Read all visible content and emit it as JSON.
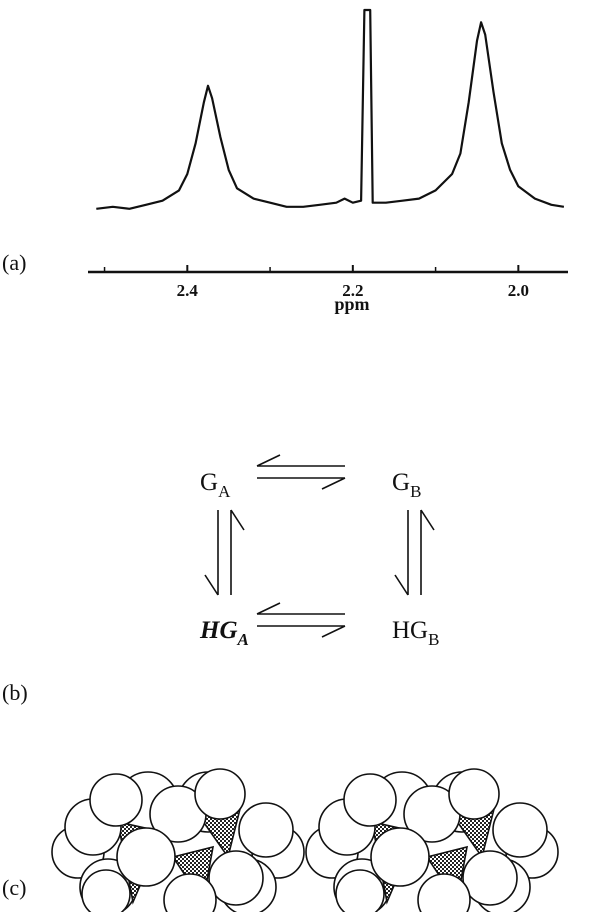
{
  "chart_data": {
    "type": "line",
    "color": "#111111",
    "x_label": "ppm",
    "panel_label": "(a)",
    "x": [
      2.51,
      2.49,
      2.47,
      2.45,
      2.43,
      2.41,
      2.4,
      2.39,
      2.38,
      2.375,
      2.37,
      2.36,
      2.35,
      2.34,
      2.32,
      2.3,
      2.28,
      2.26,
      2.24,
      2.22,
      2.21,
      2.2,
      2.19,
      2.186,
      2.179,
      2.176,
      2.16,
      2.14,
      2.12,
      2.1,
      2.08,
      2.07,
      2.06,
      2.05,
      2.045,
      2.04,
      2.03,
      2.02,
      2.01,
      2.0,
      1.98,
      1.96,
      1.945
    ],
    "values": [
      3,
      4,
      3,
      5,
      7,
      12,
      20,
      35,
      55,
      63,
      57,
      38,
      22,
      13,
      8,
      6,
      4,
      4,
      5,
      6,
      8,
      6,
      7,
      100,
      100,
      6,
      6,
      7,
      8,
      12,
      20,
      30,
      55,
      85,
      94,
      88,
      60,
      35,
      22,
      14,
      8,
      5,
      4
    ],
    "xlim": [
      2.52,
      1.94
    ],
    "ylim": [
      0,
      100
    ],
    "xticks": [
      {
        "value": 2.4,
        "label": "2.4"
      },
      {
        "value": 2.2,
        "label": "2.2"
      },
      {
        "value": 2,
        "label": "2.0"
      }
    ],
    "minor_xticks": [
      2.5,
      2.3,
      2.1
    ]
  },
  "scheme": {
    "panel_label": "(b)",
    "nodes": [
      {
        "main": "G",
        "sub": "A"
      },
      {
        "main": "G",
        "sub": "B"
      },
      {
        "main": "HG",
        "sub": "A"
      },
      {
        "main": "HG",
        "sub": "B"
      }
    ]
  },
  "models": {
    "panel_label": "(c)"
  }
}
